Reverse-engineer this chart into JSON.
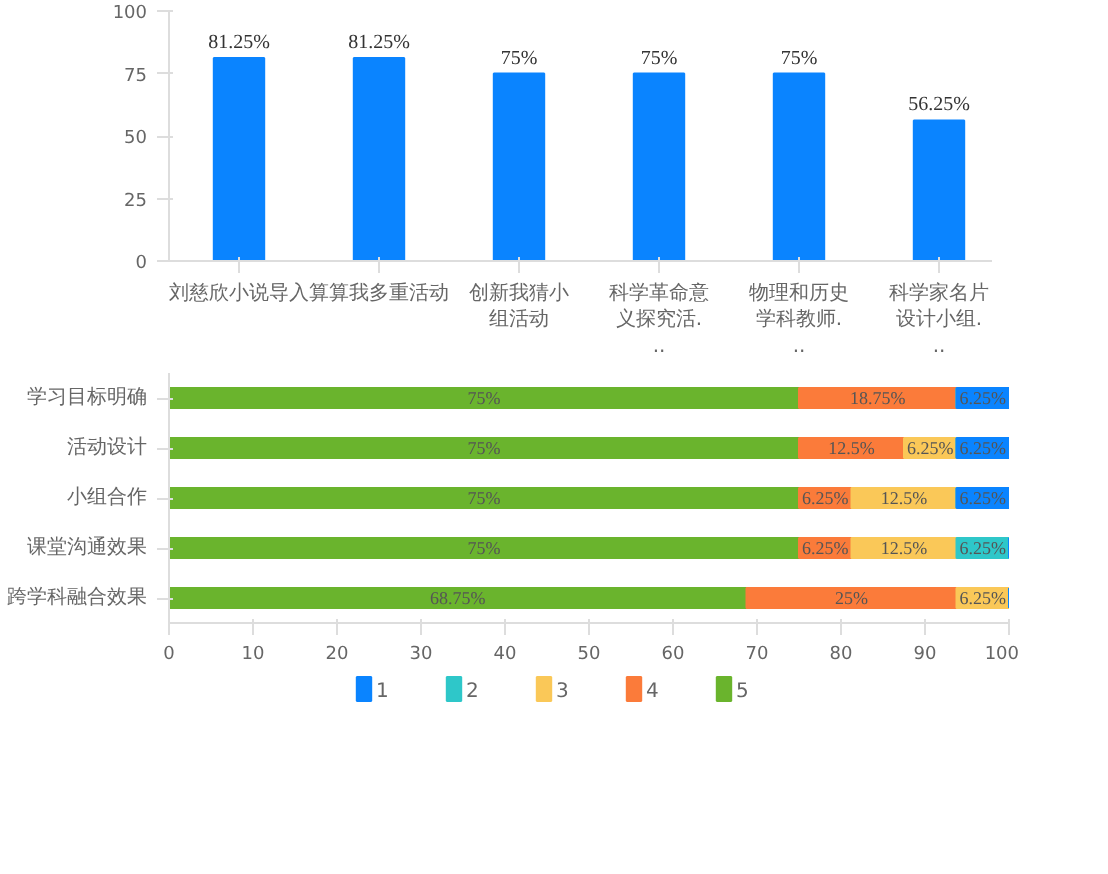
{
  "chart_data": [
    {
      "type": "bar",
      "categories": [
        "刘慈欣小说导入",
        "算算我多重活动",
        "创新我猜小组活动",
        "科学革命意义探究活...",
        "物理和历史学科教师...",
        "科学家名片设计小组..."
      ],
      "values": [
        81.25,
        81.25,
        75,
        75,
        75,
        56.25
      ],
      "value_labels": [
        "81.25%",
        "81.25%",
        "75%",
        "75%",
        "75%",
        "56.25%"
      ],
      "color": "#0a84ff",
      "ylim": [
        0,
        100
      ],
      "yticks": [
        0,
        25,
        50,
        75,
        100
      ],
      "grid": false
    },
    {
      "type": "bar",
      "orientation": "horizontal",
      "stacked": true,
      "categories": [
        "学习目标明确",
        "活动设计",
        "小组合作",
        "课堂沟通效果",
        "跨学科融合效果"
      ],
      "xlim": [
        0,
        100
      ],
      "xticks": [
        0,
        10,
        20,
        30,
        40,
        50,
        60,
        70,
        80,
        90,
        100
      ],
      "grid": false,
      "legend": "bottom",
      "series": [
        {
          "name": "5",
          "color": "#6ab42d",
          "values": [
            75,
            75,
            75,
            75,
            68.75
          ],
          "value_labels": [
            "75%",
            "75%",
            "75%",
            "75%",
            "68.75%"
          ]
        },
        {
          "name": "4",
          "color": "#fb7b3a",
          "values": [
            18.75,
            12.5,
            6.25,
            6.25,
            25
          ],
          "value_labels": [
            "18.75%",
            "12.5%",
            "6.25%",
            "6.25%",
            "25%"
          ]
        },
        {
          "name": "3",
          "color": "#fac858",
          "values": [
            0,
            6.25,
            12.5,
            12.5,
            6.25
          ],
          "value_labels": [
            null,
            "6.25%",
            "12.5%",
            "12.5%",
            "6.25%"
          ]
        },
        {
          "name": "2",
          "color": "#2ec7c9",
          "values": [
            0,
            0,
            0,
            6.25,
            0
          ],
          "value_labels": [
            null,
            null,
            null,
            "6.25%",
            null
          ]
        },
        {
          "name": "1",
          "color": "#0a84ff",
          "values": [
            6.25,
            6.25,
            6.25,
            0,
            0
          ],
          "value_labels": [
            "6.25%",
            "6.25%",
            "6.25%",
            null,
            null
          ]
        }
      ]
    }
  ]
}
